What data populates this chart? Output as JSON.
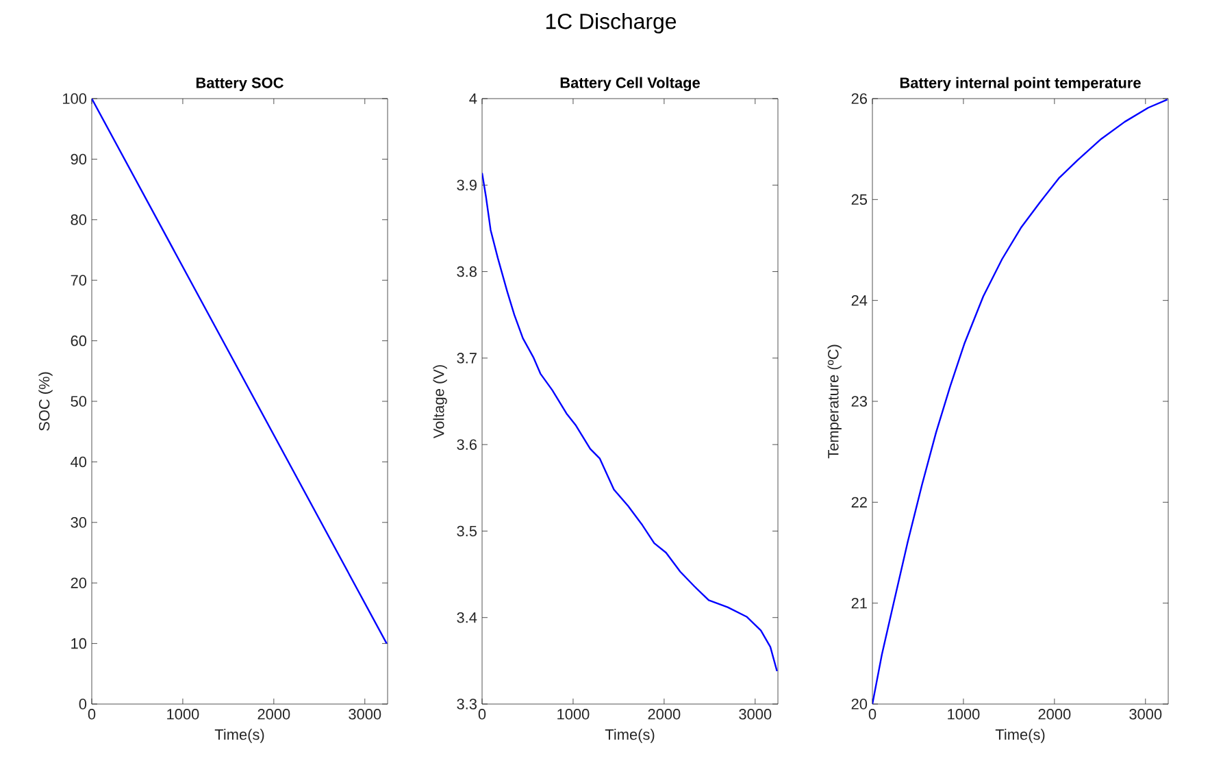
{
  "chart_data": [
    {
      "type": "line",
      "title": "Battery SOC",
      "xlabel": "Time(s)",
      "ylabel": "SOC (%)",
      "annotations": [
        "1C Discharge"
      ],
      "color": "#0000ff",
      "x": [
        0,
        3240
      ],
      "values": [
        100,
        10
      ],
      "xlim": [
        0,
        3250
      ],
      "ylim": [
        0,
        100
      ],
      "xticks": [
        0,
        1000,
        2000,
        3000
      ],
      "yticks": [
        0,
        10,
        20,
        30,
        40,
        50,
        60,
        70,
        80,
        90,
        100
      ]
    },
    {
      "type": "line",
      "title": "Battery Cell Voltage",
      "xlabel": "Time(s)",
      "ylabel": "Voltage (V)",
      "color": "#0000ff",
      "x": [
        0,
        42,
        94,
        172,
        276,
        354,
        448,
        563,
        641,
        771,
        927,
        1031,
        1188,
        1292,
        1448,
        1604,
        1760,
        1891,
        2021,
        2177,
        2333,
        2490,
        2698,
        2906,
        3063,
        3167,
        3240
      ],
      "values": [
        3.914,
        3.887,
        3.848,
        3.816,
        3.777,
        3.75,
        3.723,
        3.701,
        3.682,
        3.663,
        3.636,
        3.622,
        3.595,
        3.584,
        3.548,
        3.529,
        3.507,
        3.486,
        3.475,
        3.453,
        3.436,
        3.42,
        3.412,
        3.401,
        3.385,
        3.366,
        3.338
      ],
      "xlim": [
        0,
        3250
      ],
      "ylim": [
        3.3,
        4
      ],
      "xticks": [
        0,
        1000,
        2000,
        3000
      ],
      "yticks": [
        3.3,
        3.4,
        3.5,
        3.6,
        3.7,
        3.8,
        3.9,
        4
      ]
    },
    {
      "type": "line",
      "title": "Battery internal point temperature",
      "xlabel": "Time(s)",
      "ylabel": "Temperature (ºC)",
      "color": "#0000ff",
      "x": [
        0,
        104,
        233,
        389,
        544,
        699,
        855,
        1010,
        1218,
        1425,
        1632,
        1839,
        2047,
        2254,
        2513,
        2772,
        3031,
        3240
      ],
      "values": [
        20,
        20.49,
        21.0,
        21.61,
        22.17,
        22.69,
        23.15,
        23.57,
        24.04,
        24.41,
        24.72,
        24.97,
        25.21,
        25.39,
        25.6,
        25.77,
        25.91,
        25.99
      ],
      "xlim": [
        0,
        3250
      ],
      "ylim": [
        20,
        26
      ],
      "xticks": [
        0,
        1000,
        2000,
        3000
      ],
      "yticks": [
        20,
        21,
        22,
        23,
        24,
        25,
        26
      ]
    }
  ]
}
